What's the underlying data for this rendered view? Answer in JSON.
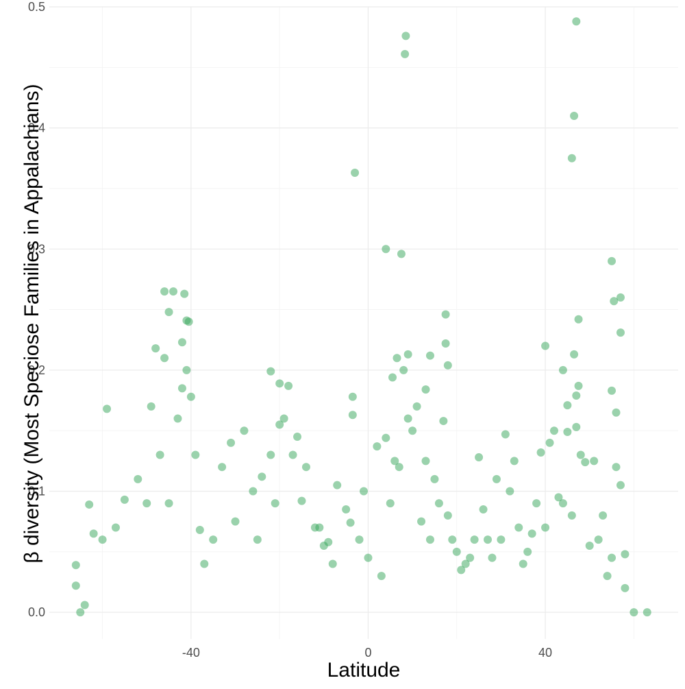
{
  "chart_data": {
    "type": "scatter",
    "title": "",
    "xlabel": "Latitude",
    "ylabel": "β diversity (Most Speciose Families in Appalachians)",
    "xlim": [
      -72,
      70
    ],
    "ylim": [
      -0.022,
      0.5
    ],
    "x_ticks": [
      -40,
      0,
      40
    ],
    "x_tick_labels": [
      "-40",
      "0",
      "40"
    ],
    "y_ticks": [
      0.0,
      0.1,
      0.2,
      0.3,
      0.4,
      0.5
    ],
    "y_tick_labels": [
      "0.0",
      "0.1",
      "0.2",
      "0.3",
      "0.4",
      "0.5"
    ],
    "grid": true,
    "legend": "none",
    "point_color": "#35a55a",
    "point_opacity": 0.5,
    "series": [
      {
        "points": [
          [
            47,
            0.488
          ],
          [
            8.5,
            0.476
          ],
          [
            8.3,
            0.461
          ],
          [
            46.5,
            0.41
          ],
          [
            46,
            0.375
          ],
          [
            -3,
            0.363
          ],
          [
            4,
            0.3
          ],
          [
            7.5,
            0.296
          ],
          [
            55,
            0.29
          ],
          [
            -46,
            0.265
          ],
          [
            -44,
            0.265
          ],
          [
            -41.5,
            0.263
          ],
          [
            57,
            0.26
          ],
          [
            55.5,
            0.257
          ],
          [
            -45,
            0.248
          ],
          [
            17.5,
            0.246
          ],
          [
            47.5,
            0.242
          ],
          [
            -41,
            0.241
          ],
          [
            -40.5,
            0.24
          ],
          [
            57,
            0.231
          ],
          [
            17.5,
            0.222
          ],
          [
            40,
            0.22
          ],
          [
            -48,
            0.218
          ],
          [
            9,
            0.213
          ],
          [
            14,
            0.212
          ],
          [
            46.5,
            0.213
          ],
          [
            -46,
            0.21
          ],
          [
            6.5,
            0.21
          ],
          [
            -42,
            0.223
          ],
          [
            -41,
            0.2
          ],
          [
            18,
            0.204
          ],
          [
            44,
            0.2
          ],
          [
            -22,
            0.199
          ],
          [
            8,
            0.2
          ],
          [
            5.5,
            0.194
          ],
          [
            -20,
            0.189
          ],
          [
            -18,
            0.187
          ],
          [
            47.5,
            0.187
          ],
          [
            -42,
            0.185
          ],
          [
            13,
            0.184
          ],
          [
            55,
            0.183
          ],
          [
            -3.5,
            0.178
          ],
          [
            47,
            0.179
          ],
          [
            -40,
            0.178
          ],
          [
            -59,
            0.168
          ],
          [
            -3.5,
            0.163
          ],
          [
            56,
            0.165
          ],
          [
            45,
            0.171
          ],
          [
            -55,
            0.093
          ],
          [
            -60,
            0.06
          ],
          [
            -63,
            0.089
          ],
          [
            -50,
            0.09
          ],
          [
            -45,
            0.09
          ],
          [
            -38,
            0.068
          ],
          [
            -35,
            0.06
          ],
          [
            -30,
            0.075
          ],
          [
            -26,
            0.1
          ],
          [
            -24,
            0.112
          ],
          [
            -22,
            0.13
          ],
          [
            -20,
            0.155
          ],
          [
            -17,
            0.13
          ],
          [
            -15,
            0.092
          ],
          [
            -12,
            0.07
          ],
          [
            -10,
            0.055
          ],
          [
            -8,
            0.04
          ],
          [
            -5,
            0.085
          ],
          [
            -2,
            0.06
          ],
          [
            0,
            0.045
          ],
          [
            3,
            0.03
          ],
          [
            5,
            0.09
          ],
          [
            7,
            0.12
          ],
          [
            10,
            0.15
          ],
          [
            12,
            0.075
          ],
          [
            14,
            0.06
          ],
          [
            16,
            0.09
          ],
          [
            18,
            0.08
          ],
          [
            20,
            0.05
          ],
          [
            22,
            0.04
          ],
          [
            24,
            0.06
          ],
          [
            26,
            0.085
          ],
          [
            28,
            0.045
          ],
          [
            30,
            0.06
          ],
          [
            32,
            0.1
          ],
          [
            34,
            0.07
          ],
          [
            36,
            0.05
          ],
          [
            38,
            0.09
          ],
          [
            40,
            0.07
          ],
          [
            42,
            0.15
          ],
          [
            44,
            0.09
          ],
          [
            46,
            0.08
          ],
          [
            48,
            0.13
          ],
          [
            50,
            0.055
          ],
          [
            52,
            0.06
          ],
          [
            54,
            0.03
          ],
          [
            56,
            0.12
          ],
          [
            58,
            0.02
          ],
          [
            60,
            0.0
          ],
          [
            63,
            0.0
          ],
          [
            -65,
            0.0
          ],
          [
            -64,
            0.006
          ],
          [
            -66,
            0.022
          ],
          [
            -66,
            0.039
          ],
          [
            -62,
            0.065
          ],
          [
            -57,
            0.07
          ],
          [
            -52,
            0.11
          ],
          [
            -49,
            0.17
          ],
          [
            -47,
            0.13
          ],
          [
            -43,
            0.16
          ],
          [
            -39,
            0.13
          ],
          [
            -37,
            0.04
          ],
          [
            -33,
            0.12
          ],
          [
            -31,
            0.14
          ],
          [
            -28,
            0.15
          ],
          [
            -25,
            0.06
          ],
          [
            -21,
            0.09
          ],
          [
            -19,
            0.16
          ],
          [
            -16,
            0.145
          ],
          [
            -14,
            0.12
          ],
          [
            -11,
            0.07
          ],
          [
            -9,
            0.058
          ],
          [
            -7,
            0.105
          ],
          [
            -4,
            0.074
          ],
          [
            -1,
            0.1
          ],
          [
            2,
            0.137
          ],
          [
            4,
            0.144
          ],
          [
            6,
            0.125
          ],
          [
            9,
            0.16
          ],
          [
            11,
            0.17
          ],
          [
            13,
            0.125
          ],
          [
            15,
            0.11
          ],
          [
            17,
            0.158
          ],
          [
            19,
            0.06
          ],
          [
            21,
            0.035
          ],
          [
            23,
            0.045
          ],
          [
            25,
            0.128
          ],
          [
            27,
            0.06
          ],
          [
            29,
            0.11
          ],
          [
            31,
            0.147
          ],
          [
            33,
            0.125
          ],
          [
            35,
            0.04
          ],
          [
            37,
            0.065
          ],
          [
            39,
            0.132
          ],
          [
            41,
            0.14
          ],
          [
            43,
            0.095
          ],
          [
            45,
            0.149
          ],
          [
            47,
            0.153
          ],
          [
            49,
            0.124
          ],
          [
            51,
            0.125
          ],
          [
            53,
            0.08
          ],
          [
            55,
            0.045
          ],
          [
            57,
            0.105
          ],
          [
            58,
            0.048
          ]
        ]
      }
    ]
  }
}
